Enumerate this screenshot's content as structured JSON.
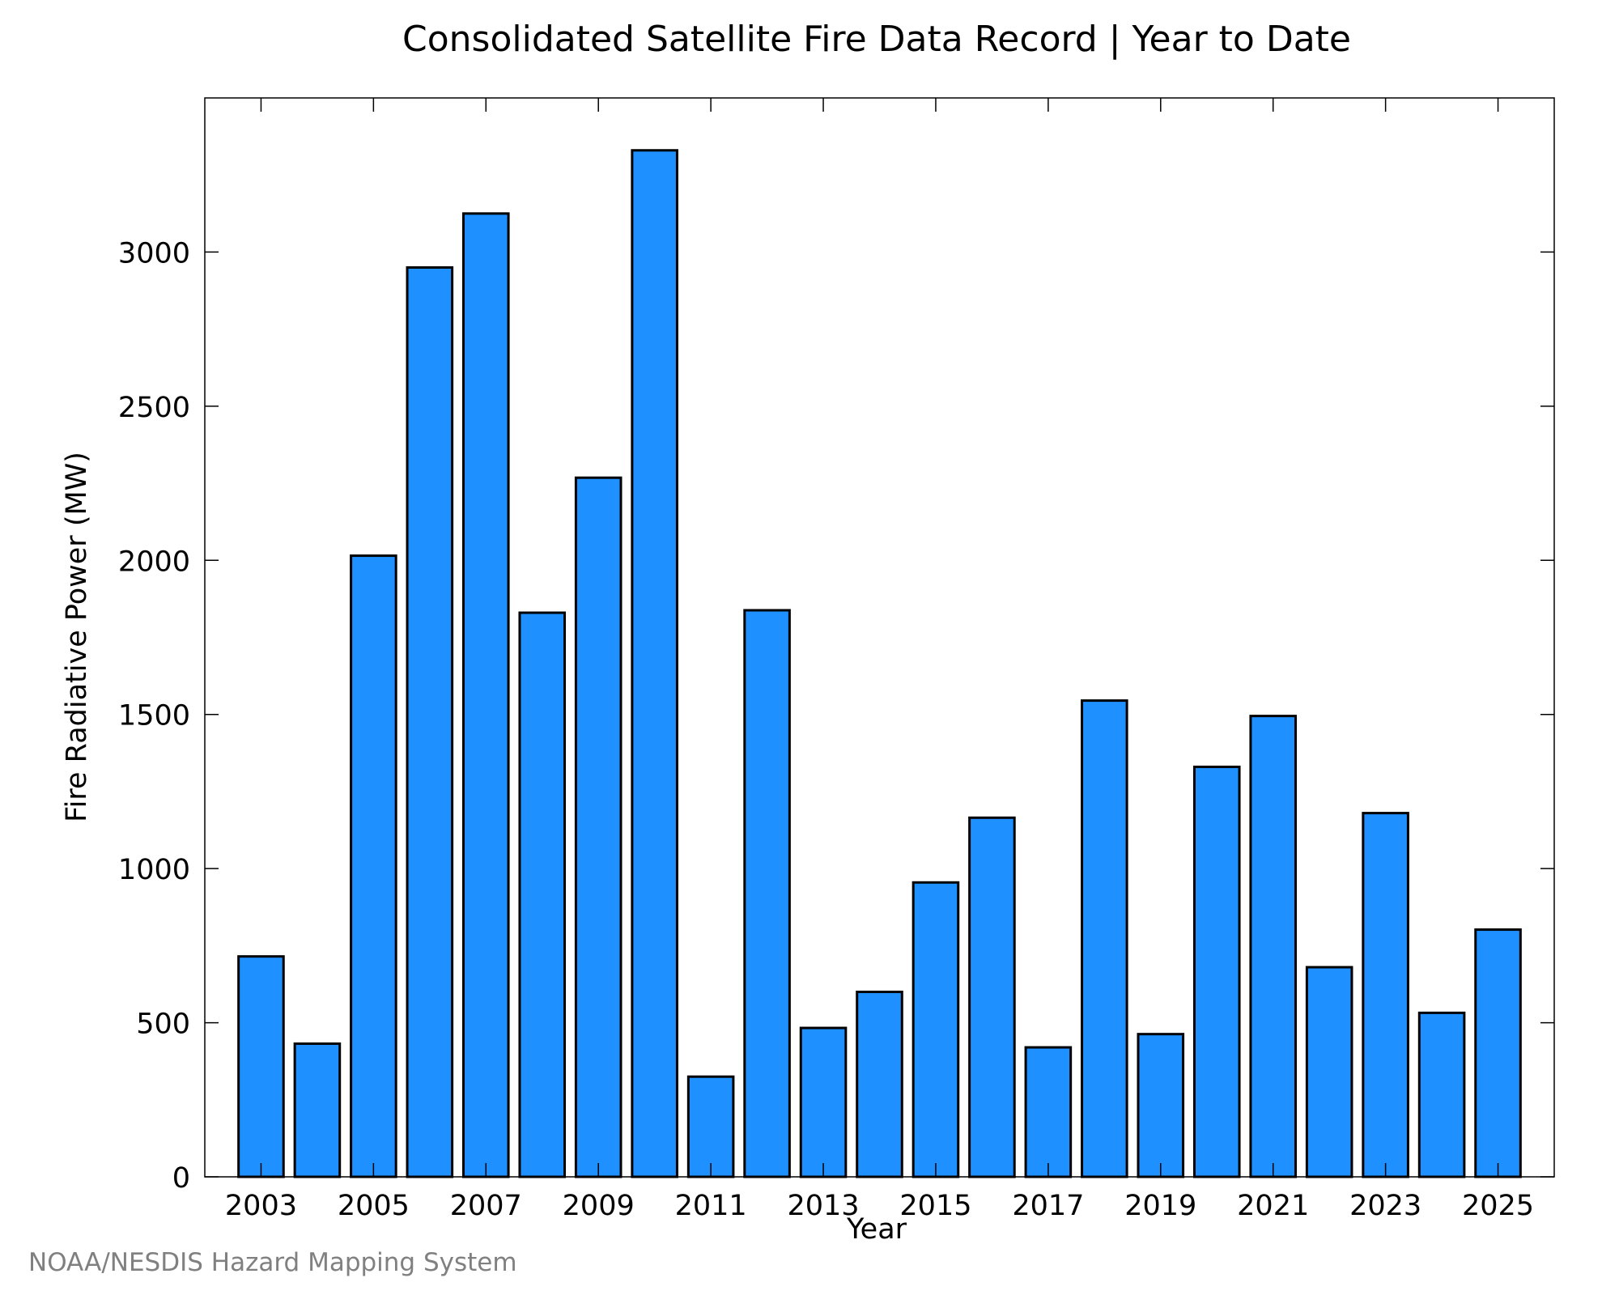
{
  "chart_data": {
    "type": "bar",
    "title": "Consolidated Satellite Fire Data Record | Year to Date",
    "xlabel": "Year",
    "ylabel": "Fire Radiative Power (MW)",
    "categories": [
      2003,
      2004,
      2005,
      2006,
      2007,
      2008,
      2009,
      2010,
      2011,
      2012,
      2013,
      2014,
      2015,
      2016,
      2017,
      2018,
      2019,
      2020,
      2021,
      2022,
      2023,
      2024,
      2025
    ],
    "values": [
      715,
      432,
      2015,
      2950,
      3125,
      1830,
      2268,
      3330,
      325,
      1838,
      483,
      600,
      955,
      1165,
      420,
      1545,
      463,
      1330,
      1495,
      680,
      1180,
      532,
      802
    ],
    "x_ticks": [
      "2003",
      "2005",
      "2007",
      "2009",
      "2011",
      "2013",
      "2015",
      "2017",
      "2019",
      "2021",
      "2023",
      "2025"
    ],
    "y_ticks": [
      "0",
      "500",
      "1000",
      "1500",
      "2000",
      "2500",
      "3000"
    ],
    "ylim": [
      0,
      3500
    ],
    "xlim": [
      2002,
      2026
    ],
    "grid": false,
    "colors": {
      "bar_fill": "#1E90FF",
      "bar_edge": "#000000"
    },
    "credit": "NOAA/NESDIS Hazard Mapping System"
  }
}
